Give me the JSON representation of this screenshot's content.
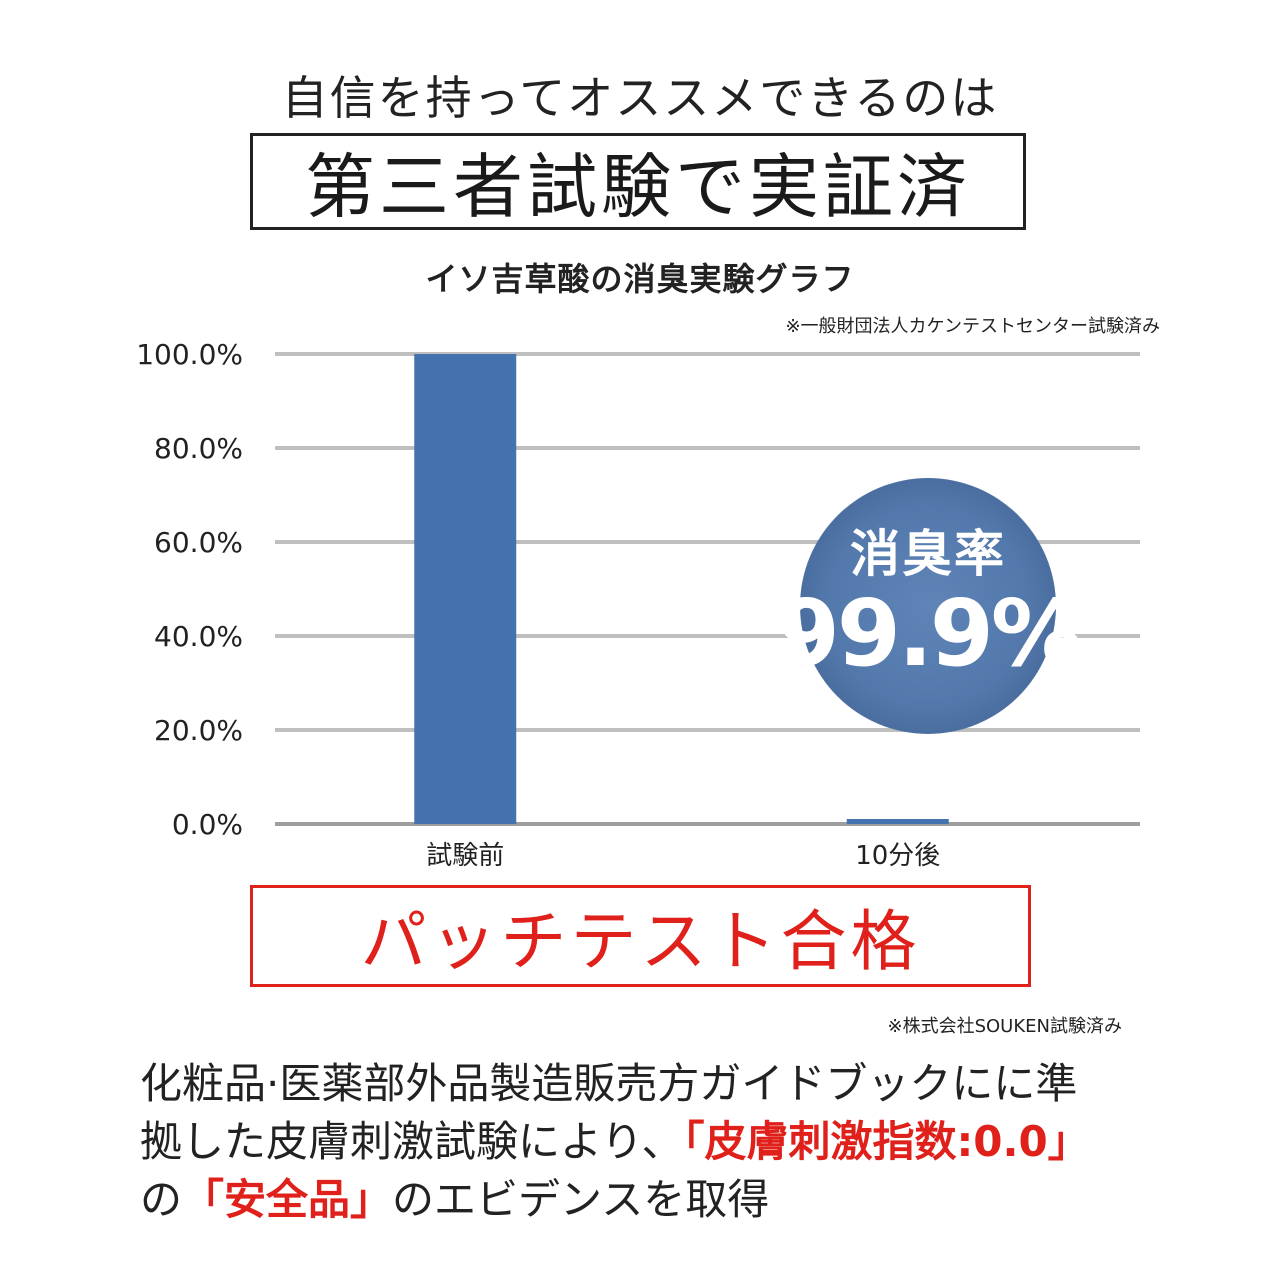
{
  "header": {
    "intro": "自信を持ってオススメできるのは",
    "title": "第三者試験で実証済"
  },
  "chart_title": "イソ吉草酸の消臭実験グラフ",
  "source_note": "※一般財団法人カケンテストセンター試験済み",
  "chart_data": {
    "type": "bar",
    "categories": [
      "試験前",
      "10分後"
    ],
    "values": [
      100.0,
      0.1
    ],
    "ylim": [
      0,
      100
    ],
    "yticks": [
      "0.0%",
      "20.0%",
      "40.0%",
      "60.0%",
      "80.0%",
      "100.0%"
    ],
    "grid": true,
    "colors": {
      "bar": "#4472ae",
      "grid": "#bfbfbf",
      "axis": "#9e9e9e"
    }
  },
  "badge": {
    "label": "消臭率",
    "value": "99.9%"
  },
  "patch_test": {
    "title": "パッチテスト合格",
    "note": "※株式会社SOUKEN試験済み"
  },
  "body": {
    "line1": "化粧品·医薬部外品製造販売方ガイドブックにに準",
    "line2_a": "拠した皮膚刺激試験により、",
    "line2_b": "「皮膚刺激指数:0.0」",
    "line3_a": "の",
    "line3_b": "「安全品」",
    "line3_c": "のエビデンスを取得"
  },
  "colors": {
    "accent_red": "#e0201a",
    "bar_blue": "#4472ae"
  }
}
